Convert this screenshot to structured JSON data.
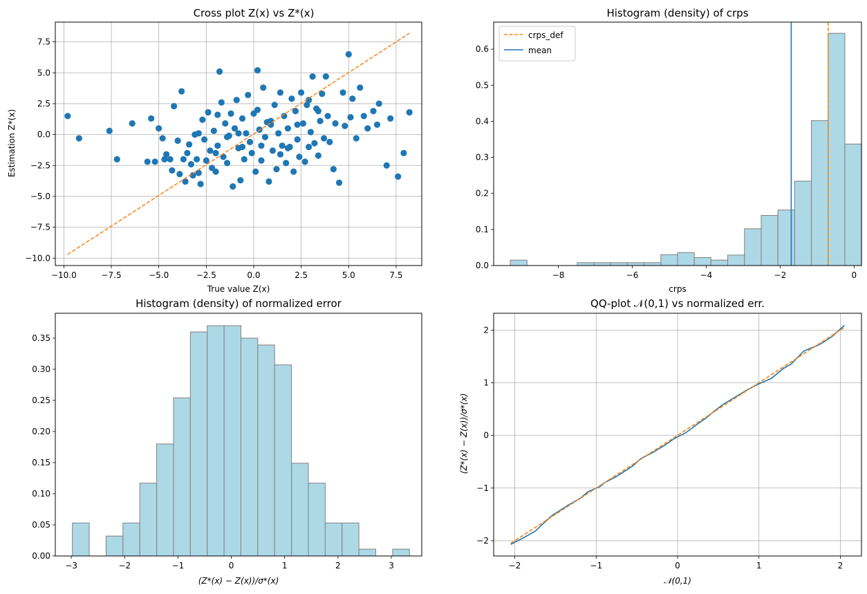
{
  "chart_data": [
    {
      "type": "scatter",
      "title": "Cross plot Z(x) vs Z*(x)",
      "xlabel": "True value Z(x)",
      "ylabel": "Estimation Z*(x)",
      "xlim": [
        -10.45,
        8.85
      ],
      "ylim": [
        -10.6,
        9.1
      ],
      "xticks": [
        -10.0,
        -7.5,
        -5.0,
        -2.5,
        0.0,
        2.5,
        5.0,
        7.5
      ],
      "xtick_labels": [
        "−10.0",
        "−7.5",
        "−5.0",
        "−2.5",
        "0.0",
        "2.5",
        "5.0",
        "7.5"
      ],
      "yticks": [
        -10.0,
        -7.5,
        -5.0,
        -2.5,
        0.0,
        2.5,
        5.0,
        7.5
      ],
      "ytick_labels": [
        "−10.0",
        "−7.5",
        "−5.0",
        "−2.5",
        "0.0",
        "2.5",
        "5.0",
        "7.5"
      ],
      "grid": true,
      "point_color": "#1f77b4",
      "line_color": "#ff7f0e",
      "line": {
        "x": [
          -9.8,
          8.2
        ],
        "y": [
          -9.7,
          8.2
        ]
      },
      "points": [
        [
          -9.8,
          1.5
        ],
        [
          -9.2,
          -0.3
        ],
        [
          -7.6,
          0.3
        ],
        [
          -7.2,
          -2.0
        ],
        [
          -6.4,
          0.9
        ],
        [
          -5.6,
          -2.2
        ],
        [
          -5.4,
          1.3
        ],
        [
          -5.2,
          -2.2
        ],
        [
          -5.0,
          0.5
        ],
        [
          -4.8,
          -0.3
        ],
        [
          -4.6,
          -1.6
        ],
        [
          -4.4,
          -2.0
        ],
        [
          -4.3,
          -2.9
        ],
        [
          -4.2,
          2.3
        ],
        [
          -4.0,
          -0.5
        ],
        [
          -3.9,
          -3.2
        ],
        [
          -3.8,
          3.5
        ],
        [
          -3.7,
          -2.0
        ],
        [
          -3.6,
          -3.8
        ],
        [
          -3.5,
          -1.5
        ],
        [
          -3.4,
          -0.8
        ],
        [
          -3.2,
          -3.3
        ],
        [
          -3.1,
          0.0
        ],
        [
          -3.0,
          -2.0
        ],
        [
          -2.9,
          -3.1
        ],
        [
          -2.8,
          -4.0
        ],
        [
          -2.7,
          1.2
        ],
        [
          -2.6,
          -0.4
        ],
        [
          -2.5,
          -2.1
        ],
        [
          -2.4,
          1.8
        ],
        [
          -2.3,
          -1.3
        ],
        [
          -2.2,
          -2.7
        ],
        [
          -2.1,
          0.3
        ],
        [
          -2.0,
          -3.0
        ],
        [
          -1.9,
          -0.9
        ],
        [
          -1.8,
          5.1
        ],
        [
          -1.7,
          2.6
        ],
        [
          -1.6,
          -1.8
        ],
        [
          -1.5,
          0.9
        ],
        [
          -1.4,
          -2.3
        ],
        [
          -1.3,
          -0.1
        ],
        [
          -1.2,
          1.7
        ],
        [
          -1.1,
          -4.2
        ],
        [
          -1.0,
          0.5
        ],
        [
          -0.9,
          2.8
        ],
        [
          -0.8,
          -1.1
        ],
        [
          -0.7,
          -3.7
        ],
        [
          -0.6,
          1.3
        ],
        [
          -0.5,
          -2.0
        ],
        [
          -0.4,
          0.1
        ],
        [
          -0.3,
          3.2
        ],
        [
          -0.2,
          -0.6
        ],
        [
          -0.1,
          -1.5
        ],
        [
          0.0,
          1.7
        ],
        [
          0.1,
          -3.0
        ],
        [
          0.2,
          5.2
        ],
        [
          0.3,
          0.4
        ],
        [
          0.4,
          -2.1
        ],
        [
          0.5,
          3.8
        ],
        [
          0.6,
          -0.2
        ],
        [
          0.7,
          1.0
        ],
        [
          0.8,
          -3.8
        ],
        [
          0.9,
          0.8
        ],
        [
          1.0,
          -1.3
        ],
        [
          1.1,
          2.4
        ],
        [
          1.2,
          -2.8
        ],
        [
          1.3,
          0.1
        ],
        [
          1.4,
          3.4
        ],
        [
          1.5,
          -0.9
        ],
        [
          1.6,
          1.5
        ],
        [
          1.7,
          -2.3
        ],
        [
          1.8,
          0.5
        ],
        [
          1.9,
          -1.0
        ],
        [
          2.0,
          2.9
        ],
        [
          2.1,
          -3.0
        ],
        [
          2.2,
          1.9
        ],
        [
          2.3,
          -0.4
        ],
        [
          2.4,
          -1.8
        ],
        [
          2.5,
          3.4
        ],
        [
          2.6,
          0.9
        ],
        [
          2.7,
          -2.2
        ],
        [
          2.8,
          2.4
        ],
        [
          2.9,
          -1.0
        ],
        [
          3.0,
          0.2
        ],
        [
          3.1,
          4.7
        ],
        [
          3.2,
          -0.7
        ],
        [
          3.3,
          2.1
        ],
        [
          3.4,
          -1.7
        ],
        [
          3.5,
          1.1
        ],
        [
          3.6,
          3.3
        ],
        [
          3.7,
          -0.3
        ],
        [
          3.8,
          4.7
        ],
        [
          3.9,
          1.5
        ],
        [
          4.0,
          -0.6
        ],
        [
          4.2,
          -2.8
        ],
        [
          4.3,
          0.9
        ],
        [
          4.5,
          -3.9
        ],
        [
          4.7,
          3.4
        ],
        [
          4.8,
          0.7
        ],
        [
          5.0,
          6.5
        ],
        [
          5.1,
          1.4
        ],
        [
          5.2,
          2.9
        ],
        [
          5.4,
          -0.3
        ],
        [
          5.6,
          3.8
        ],
        [
          5.8,
          1.5
        ],
        [
          6.0,
          0.5
        ],
        [
          6.3,
          1.9
        ],
        [
          6.5,
          0.8
        ],
        [
          6.6,
          2.5
        ],
        [
          7.0,
          -2.5
        ],
        [
          7.2,
          1.3
        ],
        [
          7.6,
          -3.4
        ],
        [
          7.9,
          -1.5
        ],
        [
          8.2,
          1.8
        ],
        [
          -4.7,
          -2.0
        ],
        [
          -2.9,
          0.1
        ],
        [
          -1.9,
          1.6
        ],
        [
          -0.6,
          -1.0
        ],
        [
          0.4,
          -0.9
        ],
        [
          1.4,
          -1.6
        ],
        [
          2.3,
          0.8
        ],
        [
          3.4,
          1.9
        ],
        [
          -3.3,
          -2.4
        ],
        [
          -1.4,
          -0.2
        ],
        [
          0.2,
          2.0
        ],
        [
          1.8,
          -1.1
        ],
        [
          2.9,
          2.8
        ],
        [
          -0.8,
          0.1
        ],
        [
          0.9,
          1.1
        ],
        [
          -2.0,
          -1.5
        ]
      ]
    },
    {
      "type": "bar",
      "title": "Histogram (density) of crps",
      "xlabel": "crps",
      "ylabel": "",
      "xlim": [
        -9.75,
        0.2
      ],
      "ylim": [
        0,
        0.675
      ],
      "xticks": [
        -8,
        -6,
        -4,
        -2,
        0
      ],
      "xtick_labels": [
        "−8",
        "−6",
        "−4",
        "−2",
        "0"
      ],
      "yticks": [
        0.0,
        0.1,
        0.2,
        0.3,
        0.4,
        0.5,
        0.6
      ],
      "ytick_labels": [
        "0.0",
        "0.1",
        "0.2",
        "0.3",
        "0.4",
        "0.5",
        "0.6"
      ],
      "grid": false,
      "bar_color": "#add8e6",
      "edge_color": "#808080",
      "bin_start": -9.3,
      "bin_width": 0.4525,
      "values": [
        0.015,
        0,
        0,
        0,
        0.008,
        0.008,
        0.008,
        0.008,
        0.008,
        0.03,
        0.036,
        0.022,
        0.015,
        0.029,
        0.102,
        0.139,
        0.154,
        0.234,
        0.402,
        0.644,
        0.337
      ],
      "legend_position": "top-left",
      "lines": [
        {
          "name": "crps_def",
          "x": -0.7,
          "color": "#ff8c00",
          "style": "dashed"
        },
        {
          "name": "mean",
          "x": -1.7,
          "color": "#1f77b4",
          "style": "solid"
        }
      ]
    },
    {
      "type": "bar",
      "title": "Histogram (density) of normalized error",
      "xlabel": "(Z*(x) − Z(x))/σ*(x)",
      "ylabel": "",
      "xlim": [
        -3.3,
        3.57
      ],
      "ylim": [
        0,
        0.39
      ],
      "xticks": [
        -3,
        -2,
        -1,
        0,
        1,
        2,
        3
      ],
      "xtick_labels": [
        "−3",
        "−2",
        "−1",
        "0",
        "1",
        "2",
        "3"
      ],
      "yticks": [
        0.0,
        0.05,
        0.1,
        0.15,
        0.2,
        0.25,
        0.3,
        0.35
      ],
      "ytick_labels": [
        "0.00",
        "0.05",
        "0.10",
        "0.15",
        "0.20",
        "0.25",
        "0.30",
        "0.35"
      ],
      "grid": false,
      "bar_color": "#add8e6",
      "edge_color": "#808080",
      "bin_start": -2.98,
      "bin_width": 0.316,
      "values": [
        0.053,
        0,
        0.032,
        0.053,
        0.117,
        0.18,
        0.254,
        0.36,
        0.37,
        0.37,
        0.35,
        0.339,
        0.307,
        0.149,
        0.117,
        0.053,
        0.053,
        0.011,
        0,
        0.011
      ]
    },
    {
      "type": "line",
      "title": "QQ-plot 𝒩(0,1) vs normalized err.",
      "xlabel": "𝒩(0,1)",
      "ylabel": "(Z*(x) − Z(x))/σ*(x)",
      "xlim": [
        -2.26,
        2.26
      ],
      "ylim": [
        -2.29,
        2.32
      ],
      "xticks": [
        -2,
        -1,
        0,
        1,
        2
      ],
      "xtick_labels": [
        "−2",
        "−1",
        "0",
        "1",
        "2"
      ],
      "yticks": [
        -2,
        -1,
        0,
        1,
        2
      ],
      "ytick_labels": [
        "−2",
        "−1",
        "0",
        "1",
        "2"
      ],
      "grid": true,
      "series": [
        {
          "color": "#1f77b4",
          "style": "solid",
          "x": [
            -2.05,
            -1.9,
            -1.75,
            -1.55,
            -1.35,
            -1.2,
            -1.1,
            -0.95,
            -0.9,
            -0.75,
            -0.55,
            -0.45,
            -0.3,
            -0.15,
            -0.05,
            0.1,
            0.25,
            0.35,
            0.45,
            0.55,
            0.7,
            0.85,
            1.0,
            1.15,
            1.3,
            1.4,
            1.55,
            1.75,
            1.9,
            2.05
          ],
          "y": [
            -2.07,
            -1.95,
            -1.82,
            -1.53,
            -1.33,
            -1.2,
            -1.07,
            -0.97,
            -0.9,
            -0.78,
            -0.58,
            -0.44,
            -0.32,
            -0.18,
            -0.07,
            0.05,
            0.22,
            0.33,
            0.46,
            0.58,
            0.72,
            0.86,
            0.98,
            1.08,
            1.27,
            1.36,
            1.6,
            1.73,
            1.88,
            2.09
          ]
        },
        {
          "color": "#ff7f0e",
          "style": "dashed",
          "x": [
            -2.05,
            2.05
          ],
          "y": [
            -2.05,
            2.05
          ]
        }
      ]
    }
  ]
}
